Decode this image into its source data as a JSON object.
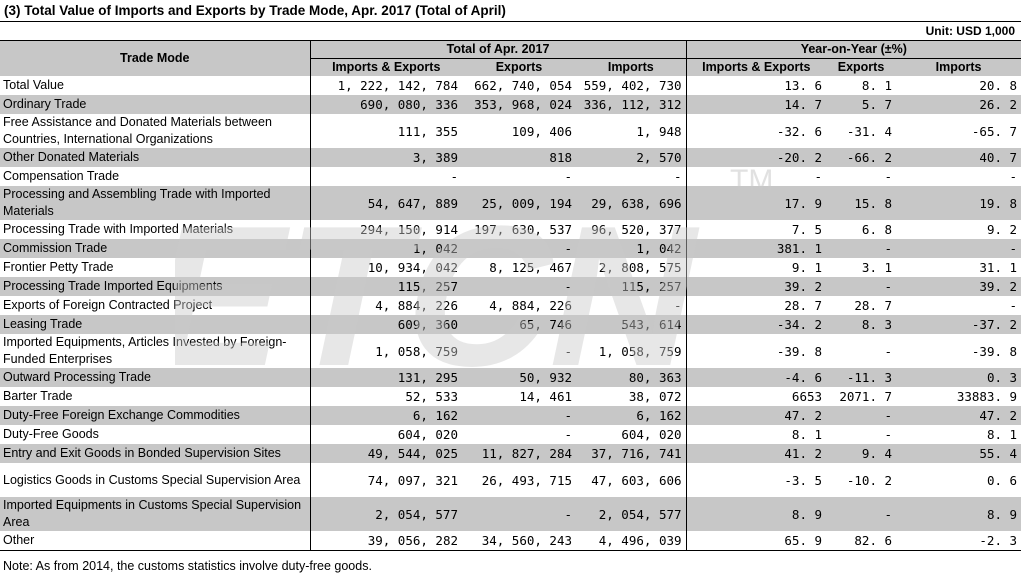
{
  "title": "(3) Total Value of Imports and Exports by Trade Mode, Apr. 2017 (Total of April)",
  "unit": "Unit: USD 1,000",
  "header": {
    "trade_mode": "Trade Mode",
    "total_group": "Total of Apr. 2017",
    "yoy_group": "Year-on-Year (±%)",
    "imports_exports": "Imports & Exports",
    "exports": "Exports",
    "imports": "Imports"
  },
  "rows": [
    {
      "name": "Total Value",
      "ie": "1, 222, 142, 784",
      "ex": "662, 740, 054",
      "im": "559, 402, 730",
      "yie": "13. 6",
      "yex": "8. 1",
      "yim": "20. 8"
    },
    {
      "name": "Ordinary Trade",
      "ie": "690, 080, 336",
      "ex": "353, 968, 024",
      "im": "336, 112, 312",
      "yie": "14. 7",
      "yex": "5. 7",
      "yim": "26. 2"
    },
    {
      "name": "Free Assistance and Donated Materials between Countries, International Organizations",
      "ie": "111, 355",
      "ex": "109, 406",
      "im": "1, 948",
      "yie": "-32. 6",
      "yex": "-31. 4",
      "yim": "-65. 7"
    },
    {
      "name": "Other Donated Materials",
      "ie": "3, 389",
      "ex": "818",
      "im": "2, 570",
      "yie": "-20. 2",
      "yex": "-66. 2",
      "yim": "40. 7"
    },
    {
      "name": "Compensation Trade",
      "ie": "-",
      "ex": "-",
      "im": "-",
      "yie": "-",
      "yex": "-",
      "yim": "-"
    },
    {
      "name": "Processing and Assembling Trade with Imported Materials",
      "ie": "54, 647, 889",
      "ex": "25, 009, 194",
      "im": "29, 638, 696",
      "yie": "17. 9",
      "yex": "15. 8",
      "yim": "19. 8"
    },
    {
      "name": "Processing Trade with Imported Materials",
      "ie": "294, 150, 914",
      "ex": "197, 630, 537",
      "im": "96, 520, 377",
      "yie": "7. 5",
      "yex": "6. 8",
      "yim": "9. 2"
    },
    {
      "name": "Commission Trade",
      "ie": "1, 042",
      "ex": "-",
      "im": "1, 042",
      "yie": "381. 1",
      "yex": "-",
      "yim": "-"
    },
    {
      "name": "Frontier Petty Trade",
      "ie": "10, 934, 042",
      "ex": "8, 125, 467",
      "im": "2, 808, 575",
      "yie": "9. 1",
      "yex": "3. 1",
      "yim": "31. 1"
    },
    {
      "name": "Processing Trade Imported Equipments",
      "ie": "115, 257",
      "ex": "-",
      "im": "115, 257",
      "yie": "39. 2",
      "yex": "-",
      "yim": "39. 2"
    },
    {
      "name": "Exports of Foreign Contracted Project",
      "ie": "4, 884, 226",
      "ex": "4, 884, 226",
      "im": "-",
      "yie": "28. 7",
      "yex": "28. 7",
      "yim": "-"
    },
    {
      "name": "Leasing Trade",
      "ie": "609, 360",
      "ex": "65, 746",
      "im": "543, 614",
      "yie": "-34. 2",
      "yex": "8. 3",
      "yim": "-37. 2"
    },
    {
      "name": "Imported Equipments, Articles Invested by Foreign-Funded Enterprises",
      "ie": "1, 058, 759",
      "ex": "-",
      "im": "1, 058, 759",
      "yie": "-39. 8",
      "yex": "-",
      "yim": "-39. 8"
    },
    {
      "name": "Outward Processing Trade",
      "ie": "131, 295",
      "ex": "50, 932",
      "im": "80, 363",
      "yie": "-4. 6",
      "yex": "-11. 3",
      "yim": "0. 3"
    },
    {
      "name": "Barter Trade",
      "ie": "52, 533",
      "ex": "14, 461",
      "im": "38, 072",
      "yie": "6653",
      "yex": "2071. 7",
      "yim": "33883. 9"
    },
    {
      "name": "Duty-Free Foreign Exchange Commodities",
      "ie": "6, 162",
      "ex": "-",
      "im": "6, 162",
      "yie": "47. 2",
      "yex": "-",
      "yim": "47. 2"
    },
    {
      "name": "Duty-Free Goods",
      "ie": "604, 020",
      "ex": "-",
      "im": "604, 020",
      "yie": "8. 1",
      "yex": "-",
      "yim": "8. 1"
    },
    {
      "name": "Entry and Exit Goods in Bonded Supervision Sites",
      "ie": "49, 544, 025",
      "ex": "11, 827, 284",
      "im": "37, 716, 741",
      "yie": "41. 2",
      "yex": "9. 4",
      "yim": "55. 4"
    },
    {
      "name": "Logistics Goods in Customs Special Supervision Area",
      "ie": "74, 097, 321",
      "ex": "26, 493, 715",
      "im": "47, 603, 606",
      "yie": "-3. 5",
      "yex": "-10. 2",
      "yim": "0. 6"
    },
    {
      "name": "Imported Equipments in Customs Special Supervision Area",
      "ie": "2, 054, 577",
      "ex": "-",
      "im": "2, 054, 577",
      "yie": "8. 9",
      "yex": "-",
      "yim": "8. 9"
    },
    {
      "name": "Other",
      "ie": "39, 056, 282",
      "ex": "34, 560, 243",
      "im": "4, 496, 039",
      "yie": "65. 9",
      "yex": "82. 6",
      "yim": "-2. 3"
    }
  ],
  "note": "Note: As from 2014, the customs statistics involve duty-free goods.",
  "watermark": {
    "text": "ETCN",
    "mark": "TM",
    "color": "#c9c9c9"
  },
  "colors": {
    "shade": "#c7c7c7",
    "border": "#000000"
  }
}
